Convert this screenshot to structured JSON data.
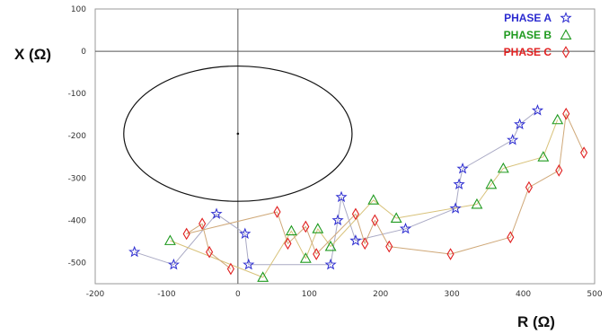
{
  "chart_data": {
    "type": "scatter",
    "xlabel": "R  (Ω)",
    "ylabel": "X  (Ω)",
    "xlim": [
      -200,
      500
    ],
    "ylim": [
      -550,
      100
    ],
    "x_ticks": [
      -200,
      -100,
      0,
      100,
      200,
      300,
      400,
      500
    ],
    "y_ticks": [
      100,
      0,
      -100,
      -200,
      -300,
      -400,
      -500
    ],
    "x_tick_labels": [
      "-200",
      "-100",
      "0",
      "100",
      "200",
      "300",
      "400",
      "500"
    ],
    "y_tick_labels": [
      "100",
      "0",
      "-100",
      "-200",
      "-300",
      "-400",
      "-500"
    ],
    "grid": false,
    "legend_position": "top-right",
    "circle": {
      "center_r": 0,
      "center_x": -195,
      "radius": 160
    },
    "series": [
      {
        "name": "PHASE A",
        "marker": "star",
        "color": "#2b2bd0",
        "line_color": "#a9a9c4",
        "points": [
          [
            -145,
            -475
          ],
          [
            -90,
            -505
          ],
          [
            -30,
            -385
          ],
          [
            10,
            -432
          ],
          [
            15,
            -505
          ],
          [
            130,
            -505
          ],
          [
            140,
            -400
          ],
          [
            145,
            -345
          ],
          [
            165,
            -448
          ],
          [
            235,
            -420
          ],
          [
            305,
            -372
          ],
          [
            310,
            -315
          ],
          [
            315,
            -278
          ],
          [
            385,
            -210
          ],
          [
            395,
            -173
          ],
          [
            420,
            -140
          ]
        ]
      },
      {
        "name": "PHASE B",
        "marker": "triangle",
        "color": "#1f9a1f",
        "line_color": "#d8c27a",
        "points": [
          [
            -95,
            -448
          ],
          [
            35,
            -535
          ],
          [
            75,
            -425
          ],
          [
            95,
            -490
          ],
          [
            112,
            -420
          ],
          [
            130,
            -462
          ],
          [
            190,
            -352
          ],
          [
            222,
            -395
          ],
          [
            335,
            -362
          ],
          [
            355,
            -315
          ],
          [
            372,
            -277
          ],
          [
            428,
            -250
          ],
          [
            448,
            -162
          ]
        ]
      },
      {
        "name": "PHASE C",
        "marker": "diamond",
        "color": "#e02020",
        "line_color": "#cfa878",
        "points": [
          [
            -10,
            -515
          ],
          [
            -40,
            -475
          ],
          [
            -50,
            -408
          ],
          [
            -72,
            -432
          ],
          [
            55,
            -380
          ],
          [
            70,
            -455
          ],
          [
            95,
            -415
          ],
          [
            110,
            -480
          ],
          [
            165,
            -385
          ],
          [
            178,
            -455
          ],
          [
            192,
            -400
          ],
          [
            212,
            -462
          ],
          [
            298,
            -480
          ],
          [
            382,
            -440
          ],
          [
            408,
            -322
          ],
          [
            450,
            -282
          ],
          [
            460,
            -148
          ],
          [
            485,
            -240
          ]
        ]
      }
    ]
  }
}
